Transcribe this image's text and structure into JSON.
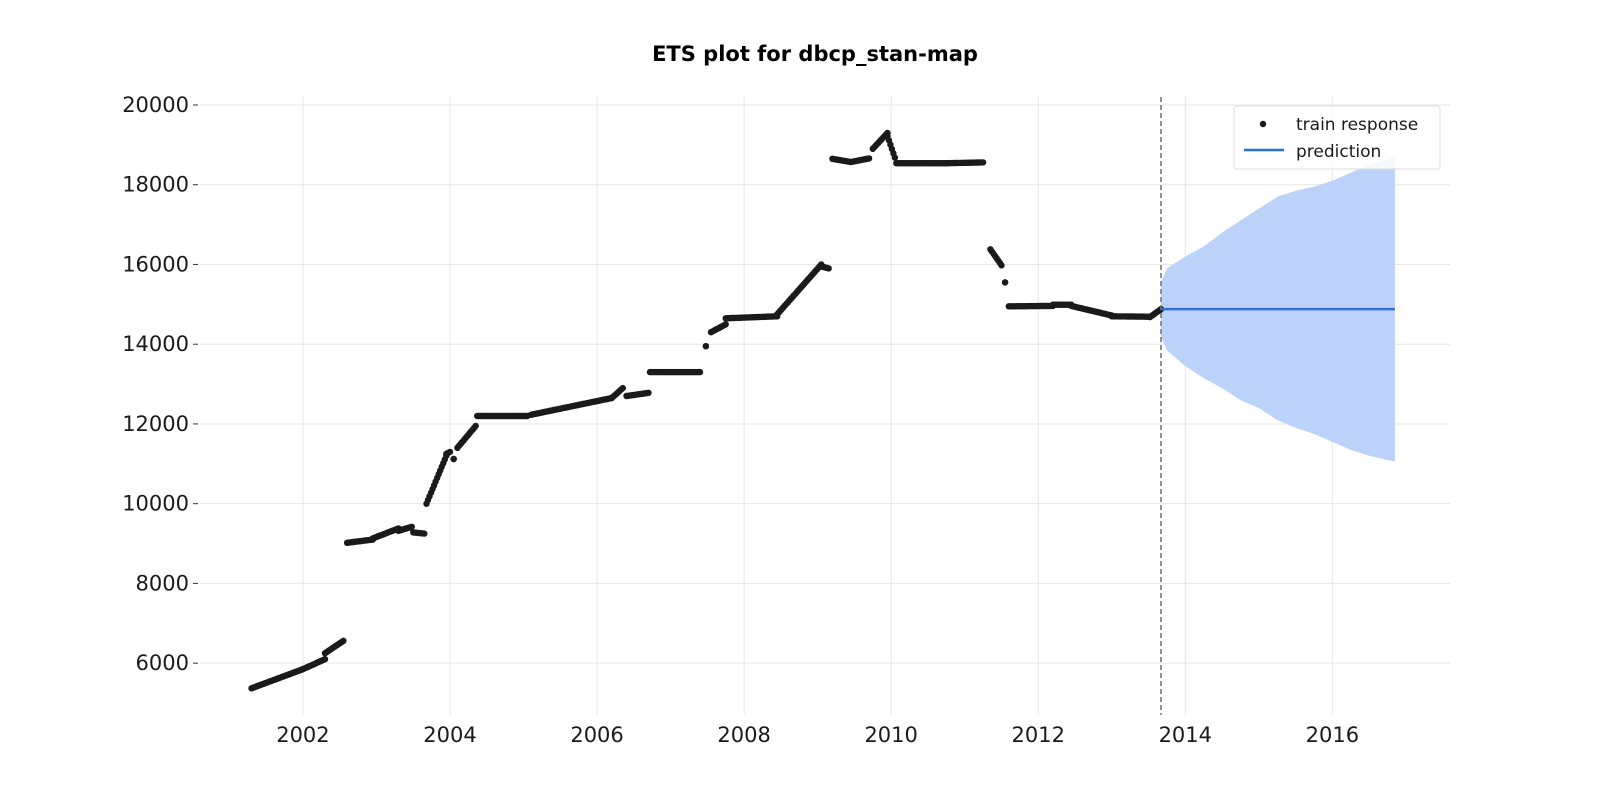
{
  "chart_data": {
    "type": "scatter",
    "title": "ETS plot for dbcp_stan-map",
    "xlabel": "",
    "ylabel": "",
    "xlim": [
      2000.6,
      2017.6
    ],
    "ylim": [
      4700,
      20200
    ],
    "x_ticks": [
      2002,
      2004,
      2006,
      2008,
      2010,
      2012,
      2014,
      2016
    ],
    "x_tick_labels": [
      "2002",
      "2004",
      "2006",
      "2008",
      "2010",
      "2012",
      "2014",
      "2016"
    ],
    "y_ticks": [
      6000,
      8000,
      10000,
      12000,
      14000,
      16000,
      18000,
      20000
    ],
    "y_tick_labels": [
      "6000",
      "8000",
      "10000",
      "12000",
      "14000",
      "16000",
      "18000",
      "20000"
    ],
    "grid": true,
    "legend_position": "top-right",
    "forecast_start": 2013.67,
    "series": [
      {
        "name": "train response",
        "kind": "scatter",
        "color": "#1a1a1a",
        "segments": [
          {
            "x0": 2001.3,
            "x1": 2002.0,
            "y0": 5370,
            "y1": 5850
          },
          {
            "x0": 2002.0,
            "x1": 2002.3,
            "y0": 5850,
            "y1": 6100
          },
          {
            "x0": 2002.3,
            "x1": 2002.55,
            "y0": 6250,
            "y1": 6560
          },
          {
            "x0": 2002.6,
            "x1": 2002.95,
            "y0": 9020,
            "y1": 9100
          },
          {
            "x0": 2002.95,
            "x1": 2003.3,
            "y0": 9130,
            "y1": 9380
          },
          {
            "x0": 2003.3,
            "x1": 2003.48,
            "y0": 9320,
            "y1": 9420
          },
          {
            "x0": 2003.5,
            "x1": 2003.65,
            "y0": 9280,
            "y1": 9250
          },
          {
            "x0": 2003.68,
            "x1": 2003.95,
            "y0": 10000,
            "y1": 11200
          },
          {
            "x0": 2003.95,
            "x1": 2004.0,
            "y0": 11250,
            "y1": 11300
          },
          {
            "x0": 2004.05,
            "x1": 2004.05,
            "y0": 11120,
            "y1": 11120
          },
          {
            "x0": 2004.1,
            "x1": 2004.35,
            "y0": 11400,
            "y1": 11950
          },
          {
            "x0": 2004.37,
            "x1": 2005.05,
            "y0": 12200,
            "y1": 12200
          },
          {
            "x0": 2005.1,
            "x1": 2006.2,
            "y0": 12230,
            "y1": 12650
          },
          {
            "x0": 2006.2,
            "x1": 2006.35,
            "y0": 12650,
            "y1": 12900
          },
          {
            "x0": 2006.4,
            "x1": 2006.7,
            "y0": 12700,
            "y1": 12780
          },
          {
            "x0": 2006.72,
            "x1": 2007.4,
            "y0": 13300,
            "y1": 13300
          },
          {
            "x0": 2007.48,
            "x1": 2007.48,
            "y0": 13950,
            "y1": 13950
          },
          {
            "x0": 2007.55,
            "x1": 2007.75,
            "y0": 14300,
            "y1": 14500
          },
          {
            "x0": 2007.75,
            "x1": 2008.45,
            "y0": 14650,
            "y1": 14700
          },
          {
            "x0": 2008.45,
            "x1": 2009.05,
            "y0": 14750,
            "y1": 16000
          },
          {
            "x0": 2009.05,
            "x1": 2009.15,
            "y0": 15950,
            "y1": 15900
          },
          {
            "x0": 2009.2,
            "x1": 2009.42,
            "y0": 18650,
            "y1": 18580
          },
          {
            "x0": 2009.45,
            "x1": 2009.7,
            "y0": 18570,
            "y1": 18660
          },
          {
            "x0": 2009.75,
            "x1": 2009.95,
            "y0": 18900,
            "y1": 19300
          },
          {
            "x0": 2009.95,
            "x1": 2010.05,
            "y0": 19220,
            "y1": 18680
          },
          {
            "x0": 2010.07,
            "x1": 2010.75,
            "y0": 18540,
            "y1": 18540
          },
          {
            "x0": 2010.75,
            "x1": 2011.25,
            "y0": 18540,
            "y1": 18560
          },
          {
            "x0": 2011.35,
            "x1": 2011.5,
            "y0": 16380,
            "y1": 15980
          },
          {
            "x0": 2011.55,
            "x1": 2011.55,
            "y0": 15550,
            "y1": 15550
          },
          {
            "x0": 2011.6,
            "x1": 2012.2,
            "y0": 14950,
            "y1": 14960
          },
          {
            "x0": 2012.2,
            "x1": 2012.45,
            "y0": 14990,
            "y1": 14990
          },
          {
            "x0": 2012.45,
            "x1": 2013.0,
            "y0": 14960,
            "y1": 14720
          },
          {
            "x0": 2013.0,
            "x1": 2013.5,
            "y0": 14700,
            "y1": 14690
          },
          {
            "x0": 2013.52,
            "x1": 2013.67,
            "y0": 14680,
            "y1": 14880
          }
        ]
      },
      {
        "name": "prediction",
        "kind": "line",
        "color": "#2b6fdb",
        "x": [
          2013.67,
          2016.85
        ],
        "y": [
          14880,
          14880
        ]
      },
      {
        "name": "prediction interval",
        "kind": "band",
        "color": "#bcd2f8",
        "x": [
          2013.67,
          2013.75,
          2014.0,
          2014.25,
          2014.5,
          2014.75,
          2015.0,
          2015.25,
          2015.5,
          2015.75,
          2016.0,
          2016.25,
          2016.5,
          2016.85
        ],
        "upper": [
          15550,
          15900,
          16200,
          16450,
          16800,
          17100,
          17400,
          17700,
          17850,
          17950,
          18100,
          18300,
          18500,
          18700
        ],
        "lower": [
          14200,
          13850,
          13450,
          13150,
          12900,
          12600,
          12400,
          12100,
          11900,
          11750,
          11550,
          11350,
          11200,
          11050
        ]
      }
    ]
  }
}
